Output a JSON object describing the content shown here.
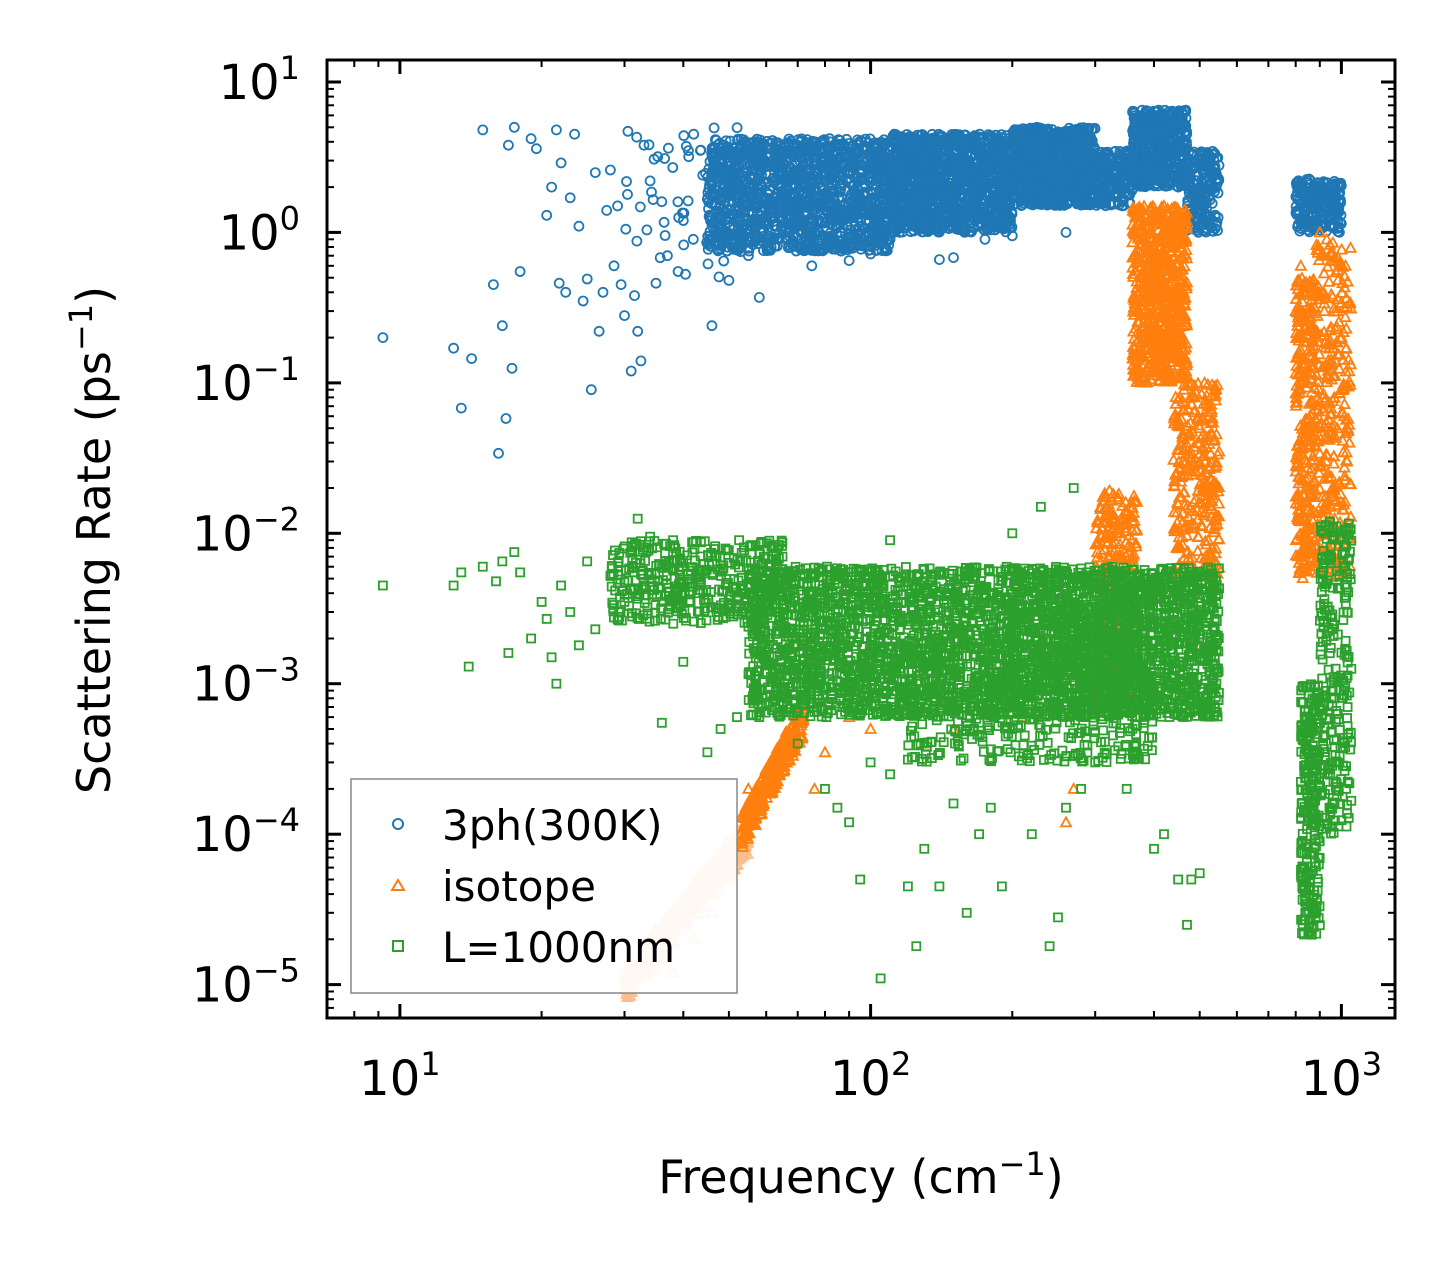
{
  "chart_data": {
    "type": "scatter",
    "xscale": "log",
    "yscale": "log",
    "xlim": [
      7,
      1300
    ],
    "ylim": [
      6e-06,
      14
    ],
    "xlabel": "Frequency (cm",
    "xlabel_sup": "−1",
    "xlabel_close": ")",
    "ylabel": "Scattering Rate (ps",
    "ylabel_sup": "−1",
    "ylabel_close": ")",
    "x_ticks": [
      {
        "value": 10,
        "base": "10",
        "exp": "1"
      },
      {
        "value": 100,
        "base": "10",
        "exp": "2"
      },
      {
        "value": 1000,
        "base": "10",
        "exp": "3"
      }
    ],
    "y_ticks": [
      {
        "value": 10,
        "base": "10",
        "exp": "1"
      },
      {
        "value": 1,
        "base": "10",
        "exp": "0"
      },
      {
        "value": 0.1,
        "base": "10",
        "exp": "−1"
      },
      {
        "value": 0.01,
        "base": "10",
        "exp": "−2"
      },
      {
        "value": 0.001,
        "base": "10",
        "exp": "−3"
      },
      {
        "value": 0.0001,
        "base": "10",
        "exp": "−4"
      },
      {
        "value": 1e-05,
        "base": "10",
        "exp": "−5"
      }
    ],
    "legend_position": "lower-left",
    "series": [
      {
        "name": "3ph(300K)",
        "marker": "circle",
        "color": "#1f77b4",
        "points": [
          [
            9.2,
            0.2
          ],
          [
            13,
            0.17
          ],
          [
            13.5,
            0.068
          ],
          [
            14.2,
            0.145
          ],
          [
            15,
            4.8
          ],
          [
            15.8,
            0.45
          ],
          [
            16.2,
            0.034
          ],
          [
            16.5,
            0.24
          ],
          [
            16.8,
            0.058
          ],
          [
            17,
            3.8
          ],
          [
            17.3,
            0.125
          ],
          [
            17.5,
            5.0
          ],
          [
            18,
            0.55
          ],
          [
            19,
            4.2
          ],
          [
            19.5,
            3.6
          ],
          [
            20.5,
            1.3
          ],
          [
            21,
            2.0
          ],
          [
            21.5,
            4.8
          ],
          [
            21.8,
            0.46
          ],
          [
            22,
            2.9
          ],
          [
            22.5,
            0.4
          ],
          [
            23,
            1.7
          ],
          [
            23.5,
            4.5
          ],
          [
            24,
            1.1
          ],
          [
            24.5,
            0.35
          ],
          [
            25,
            0.49
          ],
          [
            25.5,
            0.09
          ],
          [
            26,
            2.5
          ],
          [
            26.5,
            0.22
          ],
          [
            27,
            0.4
          ],
          [
            27.5,
            1.4
          ],
          [
            28,
            2.6
          ],
          [
            28.5,
            0.6
          ],
          [
            29,
            1.5
          ],
          [
            29.5,
            0.45
          ],
          [
            30,
            0.28
          ],
          [
            30.5,
            4.7
          ],
          [
            31,
            0.12
          ],
          [
            31.5,
            0.38
          ],
          [
            32,
            0.22
          ],
          [
            32.5,
            0.14
          ],
          [
            33,
            3.8
          ],
          [
            34,
            2.2
          ],
          [
            35,
            0.46
          ],
          [
            36,
            1.6
          ],
          [
            37,
            0.7
          ],
          [
            38,
            2.7
          ],
          [
            39,
            0.55
          ],
          [
            40,
            1.2
          ],
          [
            41,
            3.5
          ],
          [
            42,
            0.9
          ],
          [
            44,
            2.4
          ],
          [
            46,
            0.24
          ],
          [
            48,
            1.5
          ],
          [
            50,
            0.48
          ],
          [
            52,
            3.2
          ],
          [
            55,
            0.7
          ],
          [
            58,
            0.37
          ],
          [
            62,
            0.9
          ],
          [
            68,
            1.1
          ],
          [
            75,
            0.6
          ],
          [
            82,
            0.8
          ],
          [
            90,
            0.65
          ],
          [
            100,
            0.72
          ],
          [
            110,
            0.9
          ],
          [
            140,
            0.66
          ],
          [
            150,
            0.68
          ],
          [
            175,
            0.9
          ],
          [
            200,
            0.95
          ],
          [
            260,
            1.0
          ]
        ],
        "bands": [
          {
            "x": [
              30,
              60
            ],
            "y": [
              0.5,
              5
            ]
          },
          {
            "x": [
              45,
              110
            ],
            "y": [
              0.75,
              4.2
            ]
          },
          {
            "x": [
              110,
              200
            ],
            "y": [
              1.0,
              4.5
            ]
          },
          {
            "x": [
              200,
              300
            ],
            "y": [
              1.5,
              5.0
            ]
          },
          {
            "x": [
              300,
              360
            ],
            "y": [
              1.5,
              3.5
            ]
          },
          {
            "x": [
              360,
              470
            ],
            "y": [
              2.0,
              6.5
            ]
          },
          {
            "x": [
              470,
              550
            ],
            "y": [
              1.0,
              3.5
            ]
          },
          {
            "x": [
              800,
              1000
            ],
            "y": [
              1.0,
              2.3
            ]
          }
        ],
        "band_counts": [
          60,
          1500,
          1300,
          900,
          200,
          500,
          200,
          250
        ]
      },
      {
        "name": "isotope",
        "marker": "triangle",
        "color": "#ff7f0e",
        "points": [
          [
            55,
            0.0002
          ],
          [
            60,
            0.00027
          ],
          [
            68,
            0.00035
          ],
          [
            76,
            0.0002
          ],
          [
            80,
            0.00035
          ],
          [
            90,
            0.0006
          ],
          [
            100,
            0.0005
          ],
          [
            130,
            0.0004
          ],
          [
            150,
            0.0005
          ],
          [
            210,
            0.0006
          ],
          [
            260,
            0.00012
          ],
          [
            270,
            0.0002
          ],
          [
            300,
            0.001
          ],
          [
            330,
            0.005
          ],
          [
            340,
            0.01
          ],
          [
            360,
            0.012
          ],
          [
            380,
            0.4
          ],
          [
            390,
            1.2
          ],
          [
            400,
            0.8
          ],
          [
            410,
            0.2
          ],
          [
            420,
            1.5
          ],
          [
            450,
            0.3
          ],
          [
            480,
            0.1
          ],
          [
            500,
            0.05
          ],
          [
            520,
            0.07
          ],
          [
            540,
            0.02
          ],
          [
            550,
            0.035
          ],
          [
            800,
            0.3
          ],
          [
            820,
            0.6
          ],
          [
            840,
            0.05
          ],
          [
            850,
            0.02
          ],
          [
            860,
            0.01
          ],
          [
            870,
            0.006
          ],
          [
            900,
            1.0
          ],
          [
            920,
            0.3
          ],
          [
            950,
            0.015
          ],
          [
            980,
            0.05
          ],
          [
            1000,
            0.2
          ],
          [
            1040,
            0.04
          ]
        ],
        "light_points": [
          [
            31,
            1e-05
          ],
          [
            33,
            1.2e-05
          ],
          [
            35,
            1.5e-05
          ],
          [
            37,
            2e-05
          ],
          [
            38,
            1.2e-05
          ],
          [
            40,
            3e-05
          ],
          [
            42,
            2e-05
          ],
          [
            44,
            4.5e-05
          ],
          [
            46,
            3e-05
          ],
          [
            48,
            6e-05
          ],
          [
            50,
            5e-05
          ],
          [
            52,
            8e-05
          ],
          [
            53,
            7e-05
          ]
        ],
        "bands": [
          {
            "x": [
              53,
              72
            ],
            "y": [
              0.0001,
              0.0006
            ],
            "slope": true
          },
          {
            "x": [
              300,
              370
            ],
            "y": [
              0.0008,
              0.02
            ]
          },
          {
            "x": [
              360,
              470
            ],
            "y": [
              0.1,
              1.5
            ]
          },
          {
            "x": [
              440,
              550
            ],
            "y": [
              0.005,
              0.1
            ]
          },
          {
            "x": [
              800,
              880
            ],
            "y": [
              0.005,
              0.5
            ]
          },
          {
            "x": [
              880,
              1050
            ],
            "y": [
              0.005,
              0.9
            ]
          }
        ],
        "band_counts": [
          250,
          300,
          700,
          300,
          300,
          300
        ],
        "light_band": {
          "x": [
            30,
            55
          ],
          "y": [
            1e-05,
            0.0001
          ],
          "slope": true,
          "count": 300
        }
      },
      {
        "name": "L=1000nm",
        "marker": "square",
        "color": "#2ca02c",
        "points": [
          [
            9.2,
            0.0045
          ],
          [
            13,
            0.0045
          ],
          [
            13.5,
            0.0055
          ],
          [
            14,
            0.0013
          ],
          [
            15,
            0.006
          ],
          [
            16,
            0.0048
          ],
          [
            16.5,
            0.0065
          ],
          [
            17,
            0.0016
          ],
          [
            17.5,
            0.0075
          ],
          [
            18,
            0.0055
          ],
          [
            19,
            0.002
          ],
          [
            20,
            0.0035
          ],
          [
            20.5,
            0.0027
          ],
          [
            21,
            0.0015
          ],
          [
            21.5,
            0.001
          ],
          [
            22,
            0.0045
          ],
          [
            23,
            0.003
          ],
          [
            24,
            0.0018
          ],
          [
            25,
            0.0065
          ],
          [
            26,
            0.0023
          ],
          [
            28,
            0.0052
          ],
          [
            30,
            0.0035
          ],
          [
            32,
            0.0125
          ],
          [
            34,
            0.0095
          ],
          [
            36,
            0.00055
          ],
          [
            38,
            0.0065
          ],
          [
            40,
            0.0014
          ],
          [
            45,
            0.00035
          ],
          [
            48,
            0.0005
          ],
          [
            52,
            0.0006
          ],
          [
            58,
            0.0006
          ],
          [
            70,
            0.0004
          ],
          [
            80,
            0.0002
          ],
          [
            85,
            0.00015
          ],
          [
            90,
            0.00012
          ],
          [
            95,
            5e-05
          ],
          [
            100,
            0.0003
          ],
          [
            105,
            1.1e-05
          ],
          [
            110,
            0.00025
          ],
          [
            120,
            4.5e-05
          ],
          [
            125,
            1.8e-05
          ],
          [
            130,
            8e-05
          ],
          [
            140,
            4.5e-05
          ],
          [
            150,
            0.00016
          ],
          [
            160,
            3e-05
          ],
          [
            170,
            0.0001
          ],
          [
            180,
            0.00015
          ],
          [
            190,
            4.5e-05
          ],
          [
            200,
            0.0005
          ],
          [
            220,
            0.0001
          ],
          [
            240,
            1.8e-05
          ],
          [
            250,
            2.8e-05
          ],
          [
            260,
            0.00015
          ],
          [
            280,
            0.0002
          ],
          [
            300,
            0.0003
          ],
          [
            350,
            0.0002
          ],
          [
            400,
            8e-05
          ],
          [
            420,
            0.0001
          ],
          [
            450,
            5e-05
          ],
          [
            470,
            2.5e-05
          ],
          [
            480,
            5e-05
          ],
          [
            500,
            5.5e-05
          ],
          [
            110,
            0.009
          ],
          [
            200,
            0.01
          ],
          [
            270,
            0.02
          ],
          [
            230,
            0.015
          ]
        ],
        "bands": [
          {
            "x": [
              28,
              65
            ],
            "y": [
              0.0025,
              0.009
            ]
          },
          {
            "x": [
              55,
              200
            ],
            "y": [
              0.0006,
              0.006
            ]
          },
          {
            "x": [
              200,
              550
            ],
            "y": [
              0.0006,
              0.006
            ]
          },
          {
            "x": [
              120,
              400
            ],
            "y": [
              0.0003,
              0.002
            ]
          },
          {
            "x": [
              820,
              900
            ],
            "y": [
              2e-05,
              0.001
            ]
          },
          {
            "x": [
              900,
              1050
            ],
            "y": [
              0.0001,
              0.012
            ]
          }
        ],
        "band_counts": [
          400,
          1800,
          1800,
          500,
          250,
          250
        ]
      }
    ]
  }
}
